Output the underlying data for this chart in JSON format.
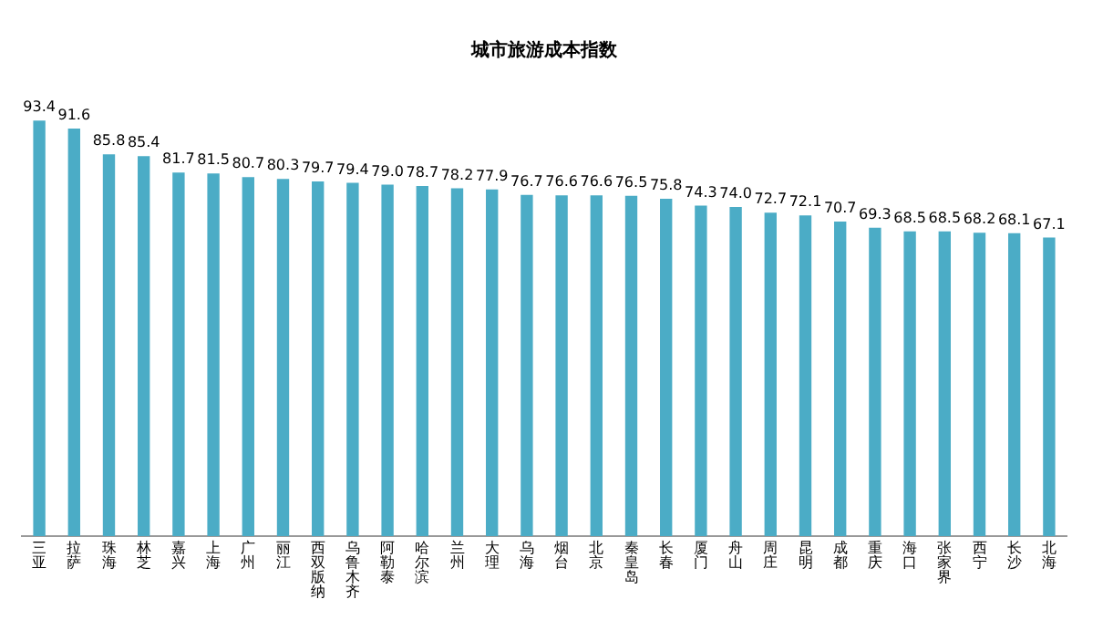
{
  "chart_data": {
    "type": "bar",
    "title": "城市旅游成本指数",
    "categories": [
      "三亚",
      "拉萨",
      "珠海",
      "林芝",
      "嘉兴",
      "上海",
      "广州",
      "丽江",
      "西双版纳",
      "乌鲁木齐",
      "阿勒泰",
      "哈尔滨",
      "兰州",
      "大理",
      "乌海",
      "烟台",
      "北京",
      "秦皇岛",
      "长春",
      "厦门",
      "舟山",
      "周庄",
      "昆明",
      "成都",
      "重庆",
      "海口",
      "张家界",
      "西宁",
      "长沙",
      "北海"
    ],
    "values": [
      93.4,
      91.6,
      85.8,
      85.4,
      81.7,
      81.5,
      80.7,
      80.3,
      79.7,
      79.4,
      79.0,
      78.7,
      78.2,
      77.9,
      76.7,
      76.6,
      76.6,
      76.5,
      75.8,
      74.3,
      74.0,
      72.7,
      72.1,
      70.7,
      69.3,
      68.5,
      68.5,
      68.2,
      68.1,
      67.1
    ],
    "value_labels": [
      "93.4",
      "91.6",
      "85.8",
      "85.4",
      "81.7",
      "81.5",
      "80.7",
      "80.3",
      "79.7",
      "79.4",
      "79.0",
      "78.7",
      "78.2",
      "77.9",
      "76.7",
      "76.6",
      "76.6",
      "76.5",
      "75.8",
      "74.3",
      "74.0",
      "72.7",
      "72.1",
      "70.7",
      "69.3",
      "68.5",
      "68.5",
      "68.2",
      "68.1",
      "67.1"
    ],
    "color": "#4bacc6",
    "grid": false,
    "legend": false
  }
}
